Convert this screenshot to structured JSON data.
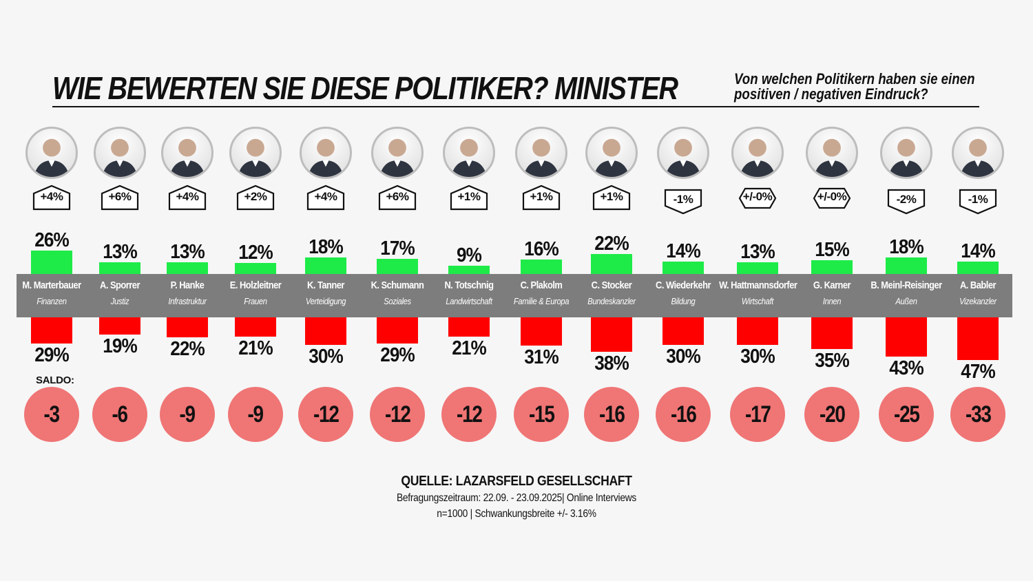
{
  "header": {
    "title": "WIE BEWERTEN SIE DIESE POLITIKER?   MINISTER",
    "question_line1": "Von welchen Politikern haben sie einen",
    "question_line2": "positiven / negativen Eindruck?"
  },
  "saldo_label": "SALDO:",
  "source": {
    "title": "QUELLE: LAZARSFELD GESELLSCHAFT",
    "line1": "Befragungszeitraum: 22.09. - 23.09.2025| Online Interviews",
    "line2": "n=1000  |  Schwankungsbreite +/- 3.16%"
  },
  "colors": {
    "positive": "#1eeb48",
    "negative": "#ff0000",
    "band": "#7d7d7d",
    "saldo_circle": "#f07575"
  },
  "chart_data": {
    "type": "bar",
    "categories": [
      "M. Marterbauer",
      "A. Sporrer",
      "P. Hanke",
      "E. Holzleitner",
      "K. Tanner",
      "K. Schumann",
      "N. Totschnig",
      "C. Plakolm",
      "C. Stocker",
      "C. Wiederkehr",
      "W. Hattmannsdorfer",
      "G. Karner",
      "B. Meinl-Reisinger",
      "A. Babler"
    ],
    "subtitles": [
      "Finanzen",
      "Justiz",
      "Infrastruktur",
      "Frauen",
      "Verteidigung",
      "Soziales",
      "Landwirtschaft",
      "Familie & Europa",
      "Bundeskanzler",
      "Bildung",
      "Wirtschaft",
      "Innen",
      "Außen",
      "Vizekanzler"
    ],
    "series": [
      {
        "values": [
          26,
          13,
          13,
          12,
          18,
          17,
          9,
          16,
          22,
          14,
          13,
          15,
          18,
          14
        ]
      },
      {
        "values": [
          29,
          19,
          22,
          21,
          30,
          29,
          21,
          31,
          38,
          30,
          30,
          35,
          43,
          47
        ]
      }
    ],
    "positive_labels": [
      "26%",
      "13%",
      "13%",
      "12%",
      "18%",
      "17%",
      "9%",
      "16%",
      "22%",
      "14%",
      "13%",
      "15%",
      "18%",
      "14%"
    ],
    "negative_labels": [
      "29%",
      "19%",
      "22%",
      "21%",
      "30%",
      "29%",
      "21%",
      "31%",
      "38%",
      "30%",
      "30%",
      "35%",
      "43%",
      "47%"
    ],
    "saldo": [
      "-3",
      "-6",
      "-9",
      "-9",
      "-12",
      "-12",
      "-12",
      "-15",
      "-16",
      "-16",
      "-17",
      "-20",
      "-25",
      "-33"
    ],
    "change": [
      "+4%",
      "+6%",
      "+4%",
      "+2%",
      "+4%",
      "+6%",
      "+1%",
      "+1%",
      "+1%",
      "-1%",
      "+/-0%",
      "+/-0%",
      "-2%",
      "-1%"
    ],
    "change_direction": [
      "up",
      "up",
      "up",
      "up",
      "up",
      "up",
      "up",
      "up",
      "up",
      "down",
      "both",
      "both",
      "down",
      "down"
    ],
    "title": "WIE BEWERTEN SIE DIESE POLITIKER?   MINISTER"
  }
}
